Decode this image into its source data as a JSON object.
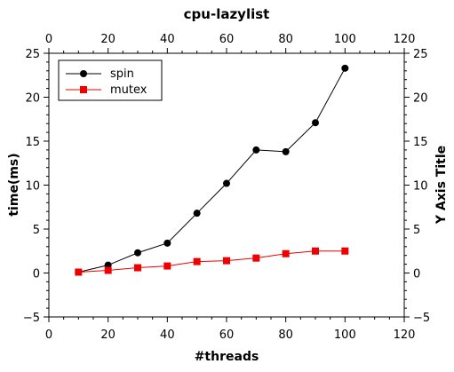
{
  "chart_data": {
    "type": "line",
    "title": "cpu-lazylist",
    "xlabel": "#threads",
    "ylabel": "time(ms)",
    "ylabel_right": "Y Axis Title",
    "xlim": [
      0,
      120
    ],
    "ylim": [
      -5,
      25
    ],
    "x_ticks": [
      0,
      20,
      40,
      60,
      80,
      100,
      120
    ],
    "y_ticks": [
      -5,
      0,
      5,
      10,
      15,
      20,
      25
    ],
    "grid": false,
    "legend_position": "top-left",
    "x": [
      10,
      20,
      30,
      40,
      50,
      60,
      70,
      80,
      90,
      100
    ],
    "series": [
      {
        "name": "spin",
        "color": "#000000",
        "marker": "circle",
        "values": [
          0.1,
          0.9,
          2.3,
          3.4,
          6.8,
          10.2,
          14.0,
          13.8,
          17.1,
          23.3
        ]
      },
      {
        "name": "mutex",
        "color": "#ee0000",
        "marker": "square",
        "values": [
          0.1,
          0.3,
          0.6,
          0.8,
          1.3,
          1.4,
          1.7,
          2.2,
          2.5,
          2.5
        ]
      }
    ]
  }
}
